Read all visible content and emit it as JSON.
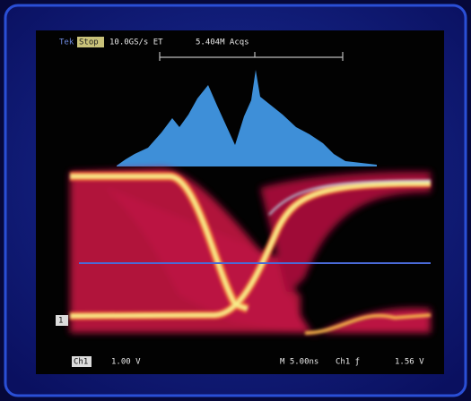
{
  "header": {
    "brand": "Tek",
    "state": "Stop",
    "sample_rate": "10.0GS/s ET",
    "acquisitions": "5.404M Acqs"
  },
  "footer": {
    "channel": "Ch1",
    "scale": "1.00 V",
    "timebase": "M 5.00ns",
    "trigger": "Ch1 ƒ",
    "trigger_level": "1.56 V"
  },
  "marker": "1"
}
